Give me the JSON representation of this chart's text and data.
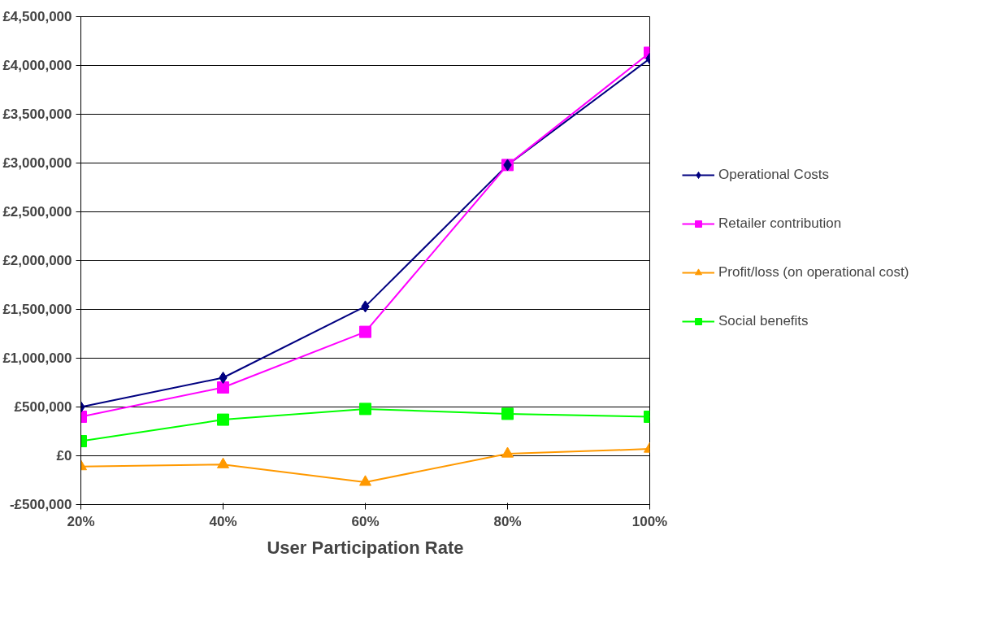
{
  "chart_data": {
    "type": "line",
    "xlabel": "User Participation Rate",
    "categories": [
      "20%",
      "40%",
      "60%",
      "80%",
      "100%"
    ],
    "series": [
      {
        "name": "Operational Costs",
        "color": "#000080",
        "marker": "diamond",
        "values": [
          500000,
          800000,
          1530000,
          2980000,
          4070000
        ]
      },
      {
        "name": "Retailer contribution",
        "color": "#ff00ff",
        "marker": "square",
        "values": [
          400000,
          700000,
          1270000,
          2980000,
          4130000
        ]
      },
      {
        "name": "Profit/loss (on operational cost)",
        "color": "#ff9900",
        "marker": "triangle",
        "values": [
          -110000,
          -90000,
          -270000,
          20000,
          70000
        ]
      },
      {
        "name": "Social benefits",
        "color": "#00ff00",
        "marker": "square",
        "values": [
          150000,
          370000,
          480000,
          430000,
          400000
        ]
      }
    ],
    "ylim": [
      -500000,
      4500000
    ],
    "yticks": [
      {
        "value": -500000,
        "label": "-£500,000"
      },
      {
        "value": 0,
        "label": "£0"
      },
      {
        "value": 500000,
        "label": "£500,000"
      },
      {
        "value": 1000000,
        "label": "£1,000,000"
      },
      {
        "value": 1500000,
        "label": "£1,500,000"
      },
      {
        "value": 2000000,
        "label": "£2,000,000"
      },
      {
        "value": 2500000,
        "label": "£2,500,000"
      },
      {
        "value": 3000000,
        "label": "£3,000,000"
      },
      {
        "value": 3500000,
        "label": "£3,500,000"
      },
      {
        "value": 4000000,
        "label": "£4,000,000"
      },
      {
        "value": 4500000,
        "label": "£4,500,000"
      }
    ],
    "grid": "y",
    "legend": "right",
    "line_style": "solid"
  }
}
